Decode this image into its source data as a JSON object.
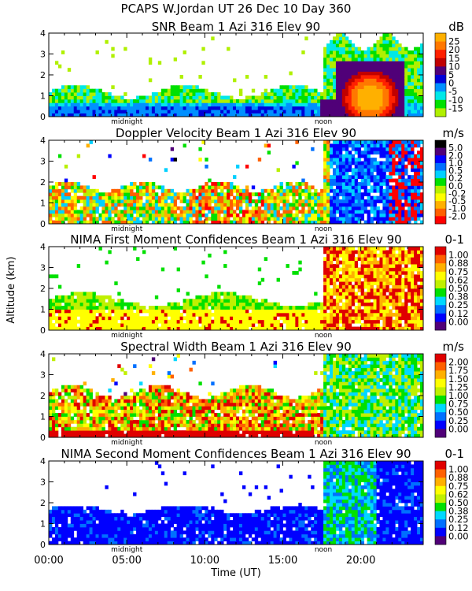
{
  "header": "PCAPS W.Jordan UT  26 Dec 10 Day 360",
  "y_axis_label": "Altitude (km)",
  "x_axis_label": "Time (UT)",
  "x_ticks": [
    "00:00",
    "05:00",
    "10:00",
    "15:00",
    "20:00"
  ],
  "x_range_hours": [
    0,
    24
  ],
  "markers": [
    {
      "label": "midnight",
      "hour": 5.0
    },
    {
      "label": "noon",
      "hour": 17.6
    }
  ],
  "chart_data": [
    {
      "type": "heatmap",
      "title": "SNR Beam 1 Azi 316 Elev 90",
      "unit": "dB",
      "ylim": [
        0,
        4
      ],
      "yticks": [
        "0",
        "1",
        "2",
        "3",
        "4"
      ],
      "colorbar": {
        "labels": [
          "25",
          "20",
          "15",
          "10",
          "5",
          "0",
          "-5",
          "-10",
          "-15"
        ],
        "colors": [
          "#ffb000",
          "#ff7800",
          "#ff2000",
          "#c00000",
          "#500078",
          "#0000d8",
          "#0090ff",
          "#00e8e8",
          "#00e000",
          "#b0f000"
        ]
      }
    },
    {
      "type": "heatmap",
      "title": "Doppler Velocity Beam 1 Azi 316 Elev 90",
      "unit": "m/s",
      "ylim": [
        0,
        4
      ],
      "yticks": [
        "0",
        "1",
        "2",
        "3",
        "4"
      ],
      "colorbar": {
        "labels": [
          "5.0",
          "2.0",
          "1.0",
          "0.5",
          "0.2",
          "0.0",
          "-0.2",
          "-0.5",
          "-1.0",
          "-2.0"
        ],
        "colors": [
          "#000000",
          "#500078",
          "#0000ff",
          "#0070ff",
          "#00d0ff",
          "#00e000",
          "#b8f000",
          "#ffff00",
          "#ffb000",
          "#ff6000",
          "#ff0000"
        ]
      }
    },
    {
      "type": "heatmap",
      "title": "NIMA First Moment Confidences Beam 1 Azi 316 Elev 90",
      "unit": "0-1",
      "ylim": [
        0,
        4
      ],
      "yticks": [
        "0",
        "1",
        "2",
        "3",
        "4"
      ],
      "colorbar": {
        "labels": [
          "1.00",
          "0.88",
          "0.75",
          "0.62",
          "0.50",
          "0.38",
          "0.25",
          "0.12",
          "0.00"
        ],
        "colors": [
          "#e00000",
          "#ff6000",
          "#ffb000",
          "#ffff00",
          "#c0f000",
          "#00e000",
          "#00d8ff",
          "#0070ff",
          "#0000ff",
          "#500078"
        ]
      }
    },
    {
      "type": "heatmap",
      "title": "Spectral Width Beam 1 Azi 316 Elev 90",
      "unit": "m/s",
      "ylim": [
        0,
        4
      ],
      "yticks": [
        "0",
        "1",
        "2",
        "3",
        "4"
      ],
      "colorbar": {
        "labels": [
          "2.00",
          "1.75",
          "1.50",
          "1.25",
          "1.00",
          "0.75",
          "0.50",
          "0.25",
          "0.00"
        ],
        "colors": [
          "#e00000",
          "#ff6000",
          "#ffb000",
          "#ffff00",
          "#c0f000",
          "#00e000",
          "#00d8ff",
          "#0070ff",
          "#0000ff",
          "#500078"
        ]
      }
    },
    {
      "type": "heatmap",
      "title": "NIMA Second Moment Confidences Beam 1 Azi 316 Elev 90",
      "unit": "0-1",
      "ylim": [
        0,
        4
      ],
      "yticks": [
        "0",
        "1",
        "2",
        "3",
        "4"
      ],
      "colorbar": {
        "labels": [
          "1.00",
          "0.88",
          "0.75",
          "0.62",
          "0.50",
          "0.38",
          "0.25",
          "0.12",
          "0.00"
        ],
        "colors": [
          "#e00000",
          "#ff6000",
          "#ffb000",
          "#ffff00",
          "#c0f000",
          "#00e000",
          "#00d8ff",
          "#0070ff",
          "#0000ff",
          "#500078"
        ]
      }
    }
  ]
}
